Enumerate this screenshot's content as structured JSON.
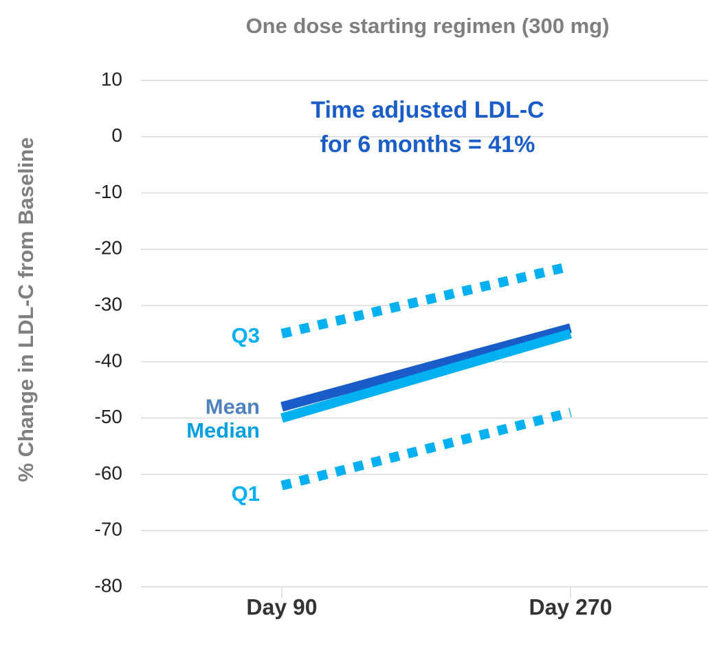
{
  "chart_data": {
    "type": "line",
    "title": "One dose starting regimen (300 mg)",
    "y_label": "% Change in LDL-C from Baseline",
    "annotations": [
      "Time adjusted LDL-C",
      "for 6 months = 41%"
    ],
    "annotation_color": "#1a5dc8",
    "categories": [
      "Day 90",
      "Day 270"
    ],
    "series": [
      {
        "name": "Q3",
        "color": "#00b0f0",
        "label_color": "#00b0f0",
        "dash": true,
        "values": [
          -35,
          -23
        ]
      },
      {
        "name": "Mean",
        "color": "#1a5dc8",
        "label_color": "#4f81bd",
        "dash": false,
        "values": [
          -48,
          -34
        ]
      },
      {
        "name": "Median",
        "color": "#00b0f0",
        "label_color": "#00a0e0",
        "dash": false,
        "values": [
          -50,
          -35
        ]
      },
      {
        "name": "Q1",
        "color": "#00b0f0",
        "label_color": "#00b0f0",
        "dash": true,
        "values": [
          -62,
          -49
        ]
      }
    ],
    "ylim": [
      -80,
      10
    ],
    "yticks": [
      -80,
      -70,
      -60,
      -50,
      -40,
      -30,
      -20,
      -10,
      0,
      10
    ],
    "grid": true
  }
}
